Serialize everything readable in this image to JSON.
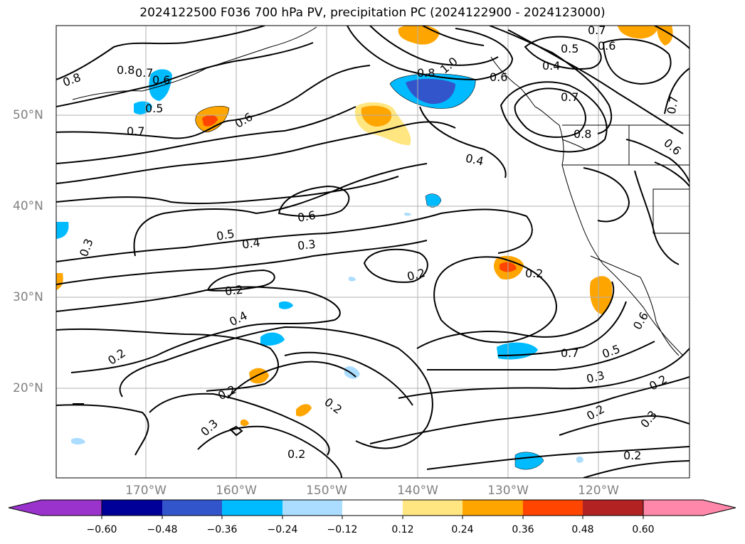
{
  "title": "2024122500 F036 700 hPa PV, precipitation PC (2024122900 - 2024123000)",
  "lat_labels": [
    "50°N",
    "40°N",
    "30°N",
    "20°N"
  ],
  "lon_labels": [
    "170°W",
    "160°W",
    "150°W",
    "140°W",
    "130°W",
    "120°W"
  ],
  "colorbar": {
    "ticks": [
      "−0.60",
      "−0.48",
      "−0.36",
      "−0.24",
      "−0.12",
      "0.12",
      "0.24",
      "0.36",
      "0.48",
      "0.60"
    ],
    "colors": [
      "#9933cc",
      "#000099",
      "#3355cc",
      "#00bbff",
      "#aaddff",
      "#ffffff",
      "#ffe680",
      "#ffa500",
      "#ff4500",
      "#b22222",
      "#ff88aa"
    ]
  },
  "contour_labels": [
    "0.8",
    "0.8",
    "0.7",
    "0.6",
    "0.5",
    "0.7",
    "0.6",
    "0.8",
    "1.0",
    "0.6",
    "0.7",
    "0.6",
    "0.5",
    "0.4",
    "0.7",
    "0.7",
    "0.8",
    "0.6",
    "0.4",
    "0.6",
    "0.5",
    "0.4",
    "0.3",
    "0.3",
    "0.2",
    "0.4",
    "0.2",
    "0.2",
    "0.2",
    "0.2",
    "0.3",
    "0.2",
    "0.2",
    "0.6",
    "0.7",
    "0.5",
    "0.3",
    "0.2",
    "0.3",
    "0.2",
    "0.2"
  ],
  "colors": {
    "contour": "#000000",
    "grid": "#b0b0b0",
    "coast": "#000000",
    "axis_label": "#808080"
  }
}
